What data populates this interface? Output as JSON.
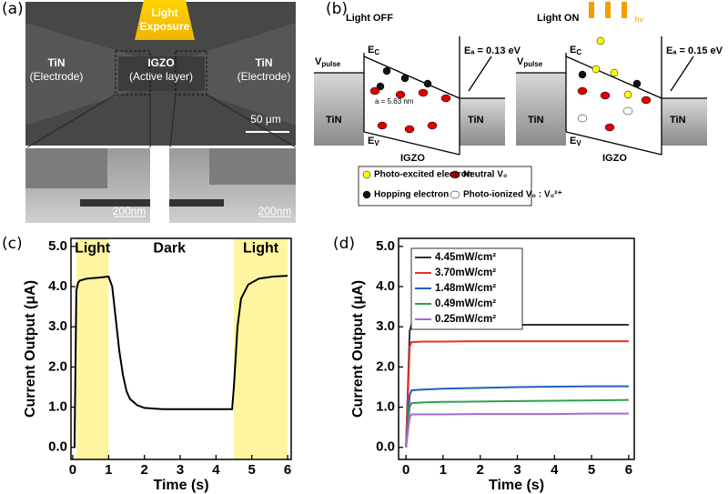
{
  "panel_labels": [
    "(a)",
    "(b)",
    "(c)",
    "(d)"
  ],
  "sem": {
    "light_exposure": [
      "Light",
      "Exposure"
    ],
    "left": [
      "TiN",
      "(Electrode)"
    ],
    "center": [
      "IGZO",
      "(Active layer)"
    ],
    "right": [
      "TiN",
      "(Electrode)"
    ],
    "scale_bar": "50 μm",
    "inset_scale": [
      "200nm",
      "200nm"
    ]
  },
  "band": {
    "titles": [
      "Light OFF",
      "Light ON"
    ],
    "vpulse": [
      "V",
      "pulse"
    ],
    "ec": [
      "E",
      "C"
    ],
    "ev": [
      "E",
      "V"
    ],
    "tin": "TiN",
    "igzo": "IGZO",
    "ea": [
      "Eₐ = 0.13 eV",
      "Eₐ = 0.15 eV"
    ],
    "spacing": "a = 5.63 nm",
    "hv": "hν",
    "legend": [
      "Photo-excited electron",
      "Neutral V₀",
      "Hopping electron",
      "Photo-ionized V₀ : V₀²⁺"
    ]
  },
  "chart_data": [
    {
      "type": "line",
      "xlabel": "Time (s)",
      "ylabel": "Current Output (μA)",
      "annotations": [
        "Light",
        "Dark",
        "Light"
      ],
      "shaded_regions": [
        [
          0.1,
          1.0
        ],
        [
          4.5,
          6.0
        ]
      ],
      "shade_color": "#fff5a0",
      "x": [
        0.05,
        0.1,
        0.15,
        0.2,
        0.4,
        0.7,
        1.0,
        1.1,
        1.2,
        1.3,
        1.4,
        1.5,
        1.6,
        1.8,
        2.0,
        2.5,
        3.5,
        4.45,
        4.5,
        4.6,
        4.7,
        4.9,
        5.2,
        5.6,
        6.0
      ],
      "series": [
        {
          "color": "#000000",
          "values": [
            0,
            3.9,
            4.1,
            4.15,
            4.2,
            4.22,
            4.25,
            4.0,
            3.2,
            2.4,
            1.8,
            1.4,
            1.2,
            1.05,
            0.98,
            0.95,
            0.95,
            0.95,
            1.5,
            3.0,
            3.7,
            4.05,
            4.2,
            4.25,
            4.27
          ]
        }
      ],
      "xlim": [
        -0.05,
        6.1
      ],
      "ylim": [
        -0.3,
        5.2
      ],
      "xticks": [
        0,
        1,
        2,
        3,
        4,
        5,
        6
      ],
      "yticks": [
        {
          "value": 0,
          "label": "0.0"
        },
        {
          "value": 1,
          "label": "1.0"
        },
        {
          "value": 2,
          "label": "2.0"
        },
        {
          "value": 3,
          "label": "3.0"
        },
        {
          "value": 4,
          "label": "4.0"
        },
        {
          "value": 5,
          "label": "5.0"
        }
      ]
    },
    {
      "type": "line",
      "xlabel": "Time (s)",
      "ylabel": "Current Output (μA)",
      "legend": "upper left",
      "x": [
        0,
        0.1,
        0.15,
        0.5,
        1,
        2,
        3,
        4,
        5,
        6
      ],
      "series": [
        {
          "name": "4.45mW/cm²",
          "color": "#333333",
          "values": [
            0,
            2.9,
            3.05,
            3.05,
            3.05,
            3.05,
            3.05,
            3.05,
            3.05,
            3.05
          ]
        },
        {
          "name": "3.70mW/cm²",
          "color": "#e8302a",
          "values": [
            0,
            2.5,
            2.62,
            2.63,
            2.63,
            2.64,
            2.64,
            2.64,
            2.64,
            2.64
          ]
        },
        {
          "name": "1.48mW/cm²",
          "color": "#1f5fc4",
          "values": [
            0,
            1.3,
            1.42,
            1.44,
            1.46,
            1.48,
            1.5,
            1.51,
            1.52,
            1.52
          ]
        },
        {
          "name": "0.49mW/cm²",
          "color": "#2ca05a",
          "values": [
            0,
            1.0,
            1.1,
            1.12,
            1.13,
            1.14,
            1.15,
            1.16,
            1.17,
            1.18
          ]
        },
        {
          "name": "0.25mW/cm²",
          "color": "#a66ad6",
          "values": [
            0,
            0.75,
            0.82,
            0.82,
            0.82,
            0.83,
            0.83,
            0.83,
            0.84,
            0.84
          ]
        }
      ],
      "xlim": [
        -0.2,
        6.15
      ],
      "ylim": [
        -0.3,
        5.2
      ],
      "xticks": [
        0,
        1,
        2,
        3,
        4,
        5,
        6
      ],
      "yticks": [
        {
          "value": 0,
          "label": "0.0"
        },
        {
          "value": 1,
          "label": "1.0"
        },
        {
          "value": 2,
          "label": "2.0"
        },
        {
          "value": 3,
          "label": "3.0"
        },
        {
          "value": 4,
          "label": "4.0"
        },
        {
          "value": 5,
          "label": "5.0"
        }
      ]
    }
  ]
}
